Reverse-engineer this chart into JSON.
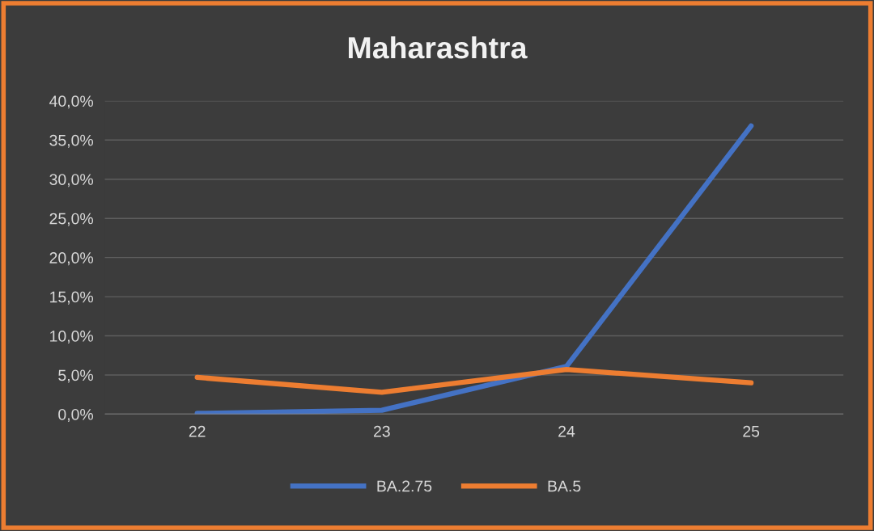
{
  "chart_data": {
    "type": "line",
    "title": "Maharashtra",
    "categories": [
      "22",
      "23",
      "24",
      "25"
    ],
    "series": [
      {
        "name": "BA.2.75",
        "color": "#4472c4",
        "values": [
          0.1,
          0.5,
          6.1,
          36.8
        ]
      },
      {
        "name": "BA.5",
        "color": "#ed7d31",
        "values": [
          4.7,
          2.8,
          5.7,
          4.0
        ]
      }
    ],
    "ylim": [
      0,
      40
    ],
    "yticks": [
      {
        "value": 0,
        "label": "0,0%"
      },
      {
        "value": 5,
        "label": "5,0%"
      },
      {
        "value": 10,
        "label": "10,0%"
      },
      {
        "value": 15,
        "label": "15,0%"
      },
      {
        "value": 20,
        "label": "20,0%"
      },
      {
        "value": 25,
        "label": "25,0%"
      },
      {
        "value": 30,
        "label": "30,0%"
      },
      {
        "value": 35,
        "label": "35,0%"
      },
      {
        "value": 40,
        "label": "40,0%"
      }
    ],
    "grid": "y",
    "legend": "bottom",
    "marker": "none",
    "line_style": "solid"
  }
}
